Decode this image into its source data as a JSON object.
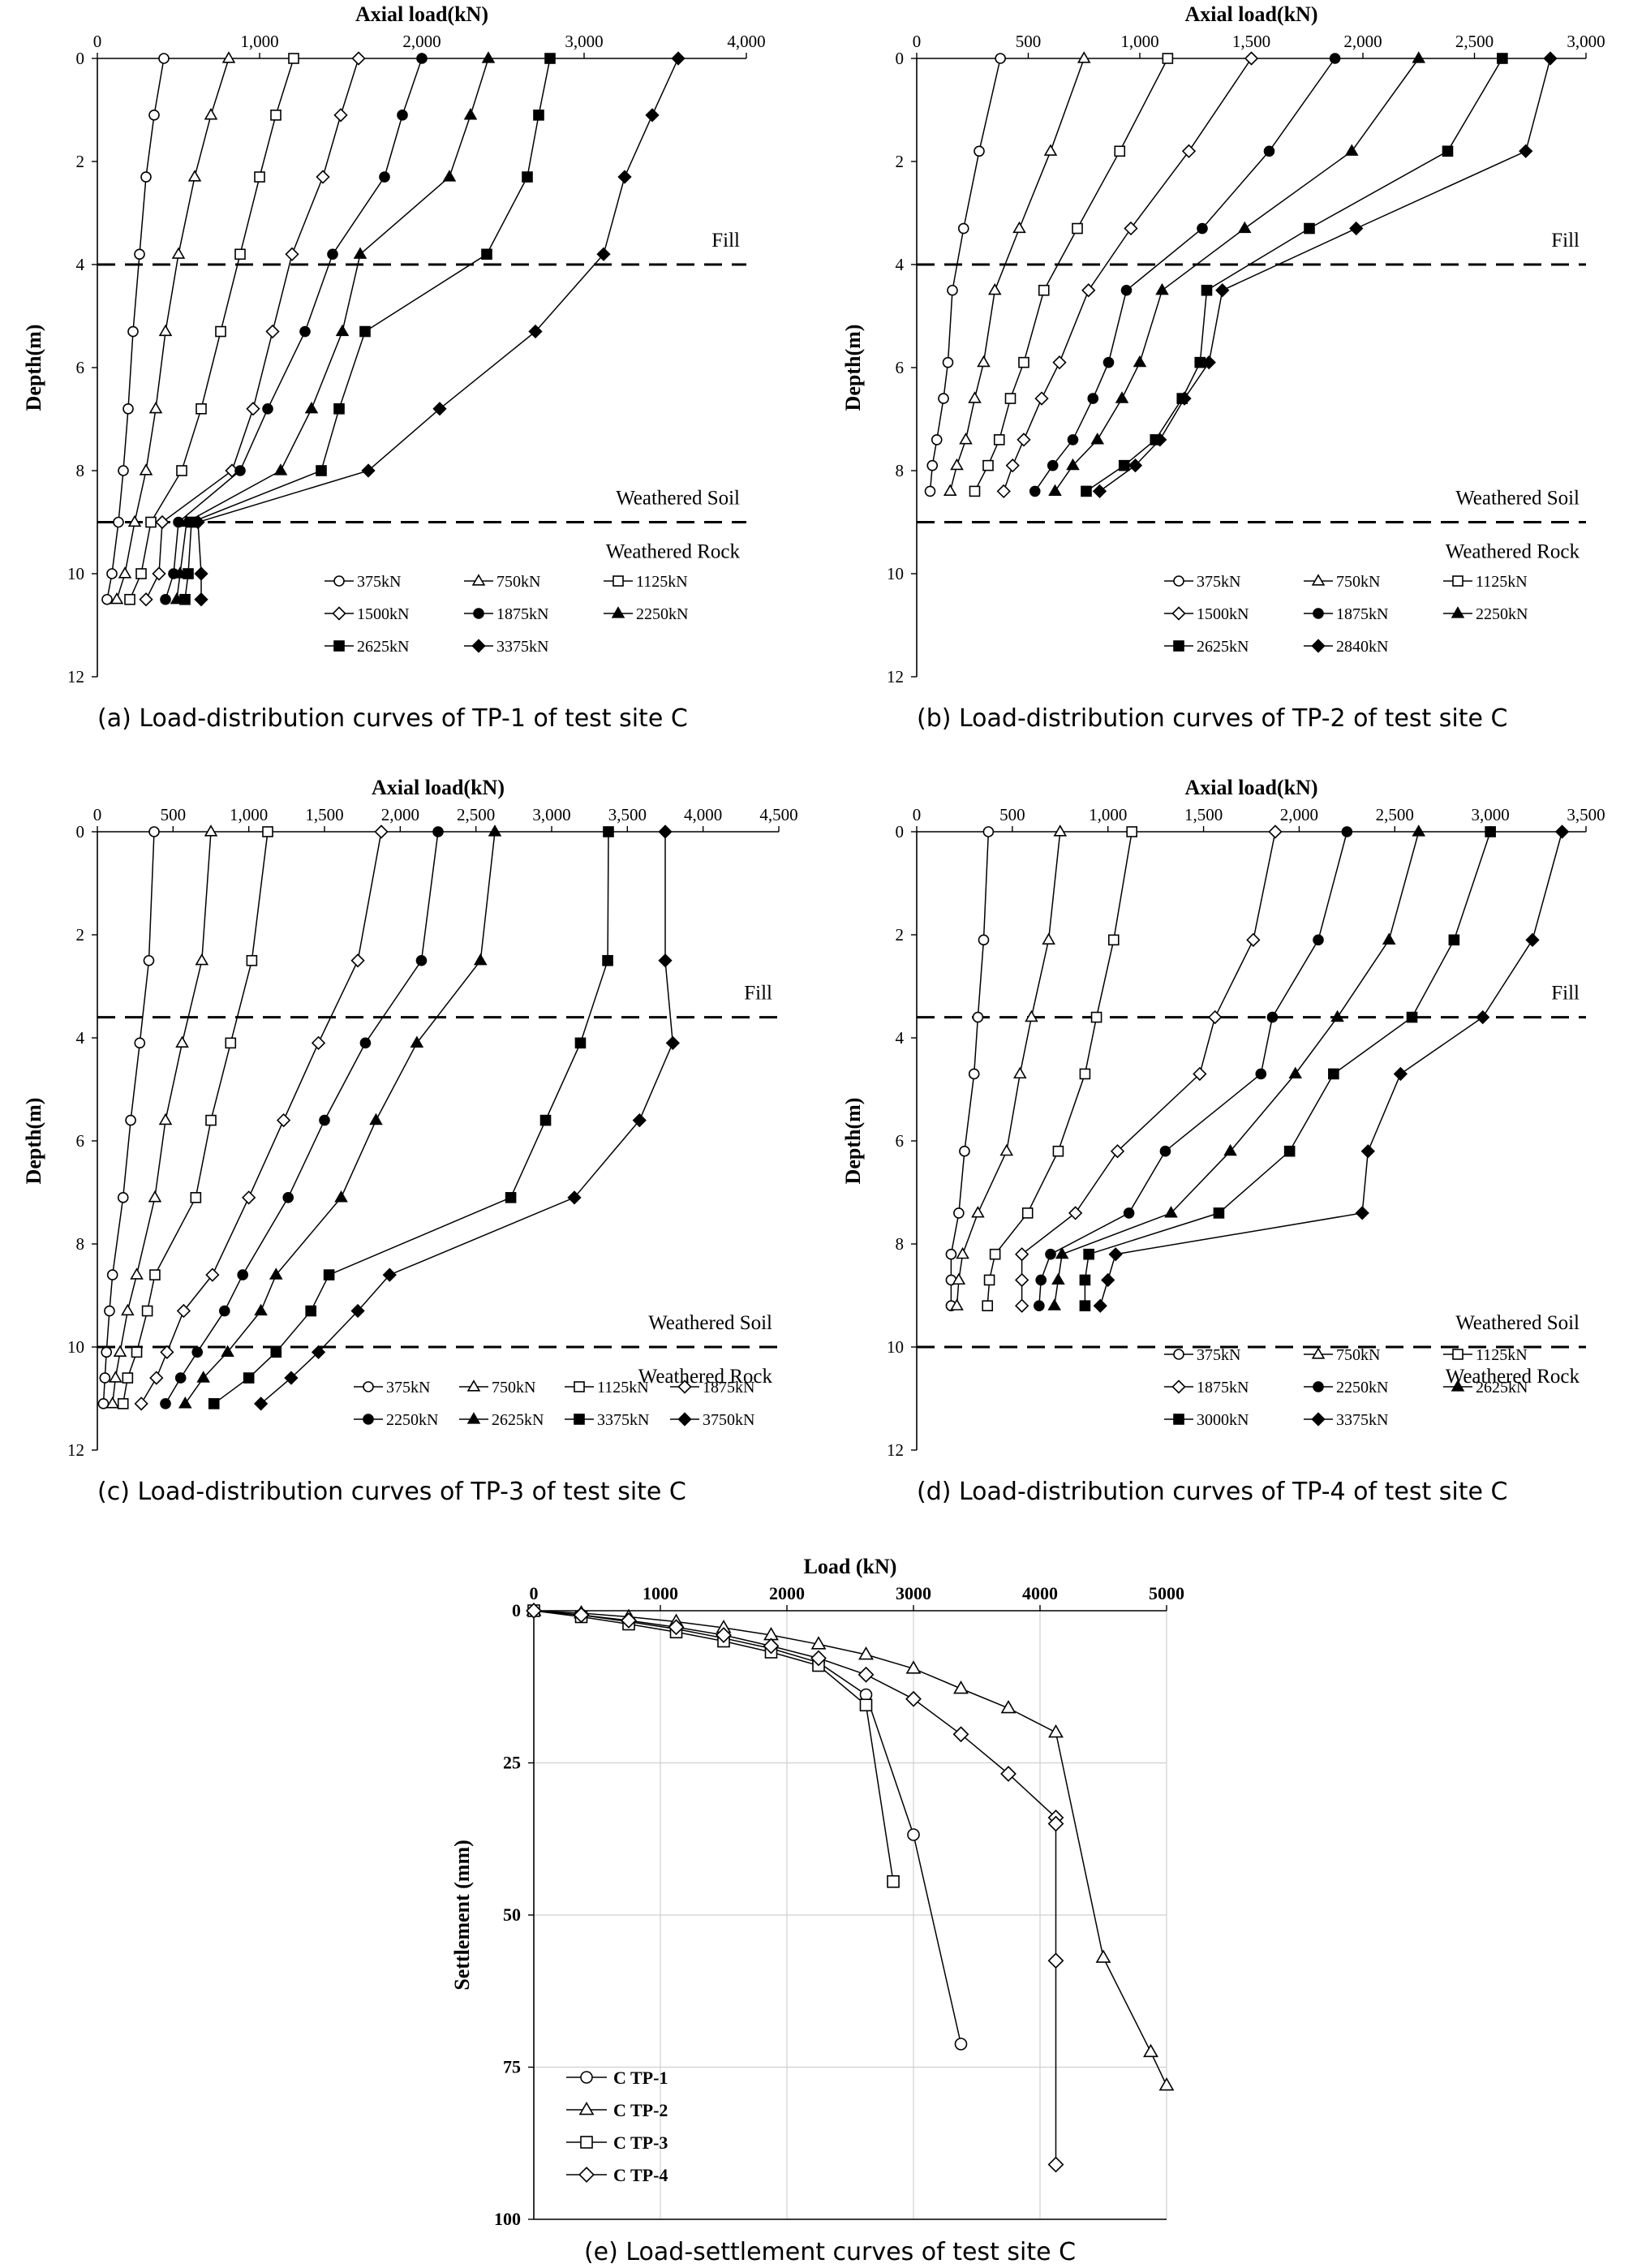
{
  "styles": {
    "line_color": "#000000",
    "gridline_color": "#d0d0d0",
    "background": "#ffffff"
  },
  "chart_data": [
    {
      "id": "a",
      "type": "line",
      "caption": "(a) Load-distribution curves of TP-1 of test site C",
      "xlabel": "Axial load(kN)",
      "ylabel": "Depth(m)",
      "xlim": [
        0,
        4000
      ],
      "ylim": [
        0,
        12
      ],
      "x_ticks": [
        0,
        1000,
        2000,
        3000,
        4000
      ],
      "x_tick_labels": [
        "0",
        "1,000",
        "2,000",
        "3,000",
        "4,000"
      ],
      "y_ticks": [
        0,
        2,
        4,
        6,
        8,
        10,
        12
      ],
      "y_tick_labels": [
        "0",
        "2",
        "4",
        "6",
        "8",
        "10",
        "12"
      ],
      "x_axis_position": "top",
      "y_inverted": true,
      "grid": false,
      "boundaries": [
        {
          "depth": 4.0,
          "label": "Fill"
        },
        {
          "depth": 9.0,
          "label": "Weathered Soil"
        }
      ],
      "bottom_label": "Weathered Rock",
      "legend_position": "bottom-right",
      "legend_cols": 3,
      "depth": [
        0,
        1.1,
        2.3,
        3.8,
        5.3,
        6.8,
        8.0,
        9.0,
        10.0,
        10.5
      ],
      "series": [
        {
          "name": "375kN",
          "marker": "circle-open",
          "x": [
            410,
            350,
            300,
            260,
            220,
            190,
            160,
            130,
            90,
            60
          ]
        },
        {
          "name": "750kN",
          "marker": "triangle-open",
          "x": [
            810,
            700,
            600,
            500,
            420,
            360,
            300,
            230,
            170,
            120
          ]
        },
        {
          "name": "1125kN",
          "marker": "square-open",
          "x": [
            1210,
            1100,
            1000,
            880,
            760,
            640,
            520,
            330,
            270,
            200
          ]
        },
        {
          "name": "1500kN",
          "marker": "diamond-open",
          "x": [
            1610,
            1500,
            1390,
            1200,
            1080,
            960,
            830,
            400,
            380,
            300
          ]
        },
        {
          "name": "1875kN",
          "marker": "circle-filled",
          "x": [
            2000,
            1880,
            1770,
            1450,
            1280,
            1050,
            880,
            500,
            470,
            420
          ]
        },
        {
          "name": "2250kN",
          "marker": "triangle-filled",
          "x": [
            2410,
            2300,
            2170,
            1620,
            1510,
            1320,
            1130,
            550,
            510,
            490
          ]
        },
        {
          "name": "2625kN",
          "marker": "square-filled",
          "x": [
            2790,
            2720,
            2650,
            2400,
            1650,
            1490,
            1380,
            580,
            560,
            540
          ]
        },
        {
          "name": "3375kN",
          "marker": "diamond-filled",
          "x": [
            3580,
            3420,
            3250,
            3120,
            2700,
            2110,
            1670,
            620,
            640,
            640
          ]
        }
      ]
    },
    {
      "id": "b",
      "type": "line",
      "caption": "(b) Load-distribution curves of TP-2 of test site C",
      "xlabel": "Axial load(kN)",
      "ylabel": "Depth(m)",
      "xlim": [
        0,
        3000
      ],
      "ylim": [
        0,
        12
      ],
      "x_ticks": [
        0,
        500,
        1000,
        1500,
        2000,
        2500,
        3000
      ],
      "x_tick_labels": [
        "0",
        "500",
        "1,000",
        "1,500",
        "2,000",
        "2,500",
        "3,000"
      ],
      "y_ticks": [
        0,
        2,
        4,
        6,
        8,
        10,
        12
      ],
      "y_tick_labels": [
        "0",
        "2",
        "4",
        "6",
        "8",
        "10",
        "12"
      ],
      "x_axis_position": "top",
      "y_inverted": true,
      "grid": false,
      "boundaries": [
        {
          "depth": 4.0,
          "label": "Fill"
        },
        {
          "depth": 9.0,
          "label": "Weathered Soil"
        }
      ],
      "bottom_label": "Weathered Rock",
      "legend_position": "bottom-right",
      "legend_cols": 3,
      "depth": [
        0,
        1.8,
        3.3,
        4.5,
        5.9,
        6.6,
        7.4,
        7.9,
        8.4
      ],
      "series": [
        {
          "name": "375kN",
          "marker": "circle-open",
          "x": [
            375,
            280,
            210,
            160,
            140,
            120,
            90,
            70,
            60
          ]
        },
        {
          "name": "750kN",
          "marker": "triangle-open",
          "x": [
            750,
            600,
            460,
            350,
            300,
            260,
            220,
            180,
            150
          ]
        },
        {
          "name": "1125kN",
          "marker": "square-open",
          "x": [
            1125,
            910,
            720,
            570,
            480,
            420,
            370,
            320,
            260
          ]
        },
        {
          "name": "1500kN",
          "marker": "diamond-open",
          "x": [
            1500,
            1220,
            960,
            770,
            640,
            560,
            480,
            430,
            390
          ]
        },
        {
          "name": "1875kN",
          "marker": "circle-filled",
          "x": [
            1875,
            1580,
            1280,
            940,
            860,
            790,
            700,
            610,
            530
          ]
        },
        {
          "name": "2250kN",
          "marker": "triangle-filled",
          "x": [
            2250,
            1950,
            1470,
            1100,
            1000,
            920,
            810,
            700,
            620
          ]
        },
        {
          "name": "2625kN",
          "marker": "square-filled",
          "x": [
            2625,
            2380,
            1760,
            1300,
            1270,
            1190,
            1070,
            930,
            760
          ]
        },
        {
          "name": "2840kN",
          "marker": "diamond-filled",
          "x": [
            2840,
            2730,
            1970,
            1370,
            1310,
            1200,
            1090,
            980,
            820
          ]
        }
      ]
    },
    {
      "id": "c",
      "type": "line",
      "caption": "(c) Load-distribution curves of TP-3 of test site C",
      "xlabel": "Axial load(kN)",
      "ylabel": "Depth(m)",
      "xlim": [
        0,
        4500
      ],
      "ylim": [
        0,
        12
      ],
      "x_ticks": [
        0,
        500,
        1000,
        1500,
        2000,
        2500,
        3000,
        3500,
        4000,
        4500
      ],
      "x_tick_labels": [
        "0",
        "500",
        "1,000",
        "1,500",
        "2,000",
        "2,500",
        "3,000",
        "3,500",
        "4,000",
        "4,500"
      ],
      "y_ticks": [
        0,
        2,
        4,
        6,
        8,
        10,
        12
      ],
      "y_tick_labels": [
        "0",
        "2",
        "4",
        "6",
        "8",
        "10",
        "12"
      ],
      "x_axis_position": "top",
      "y_inverted": true,
      "grid": false,
      "boundaries": [
        {
          "depth": 3.6,
          "label": "Fill"
        },
        {
          "depth": 10.0,
          "label": "Weathered Soil"
        }
      ],
      "bottom_label": "Weathered Rock",
      "legend_position": "bottom-right",
      "legend_cols": 4,
      "depth": [
        0,
        2.5,
        4.1,
        5.6,
        7.1,
        8.6,
        9.3,
        10.1,
        10.6,
        11.1
      ],
      "series": [
        {
          "name": "375kN",
          "marker": "circle-open",
          "x": [
            375,
            340,
            280,
            220,
            170,
            100,
            80,
            60,
            50,
            40
          ]
        },
        {
          "name": "750kN",
          "marker": "triangle-open",
          "x": [
            750,
            690,
            560,
            450,
            380,
            260,
            200,
            150,
            120,
            100
          ]
        },
        {
          "name": "1125kN",
          "marker": "square-open",
          "x": [
            1125,
            1020,
            880,
            750,
            650,
            380,
            330,
            260,
            200,
            170
          ]
        },
        {
          "name": "1875kN",
          "marker": "diamond-open",
          "x": [
            1875,
            1720,
            1460,
            1230,
            1000,
            760,
            570,
            460,
            390,
            290
          ]
        },
        {
          "name": "2250kN",
          "marker": "circle-filled",
          "x": [
            2250,
            2140,
            1770,
            1500,
            1260,
            960,
            840,
            660,
            550,
            450
          ]
        },
        {
          "name": "2625kN",
          "marker": "triangle-filled",
          "x": [
            2625,
            2530,
            2110,
            1840,
            1610,
            1180,
            1080,
            860,
            700,
            580
          ]
        },
        {
          "name": "3375kN",
          "marker": "square-filled",
          "x": [
            3375,
            3370,
            3190,
            2960,
            2730,
            1530,
            1410,
            1180,
            1000,
            770
          ]
        },
        {
          "name": "3750kN",
          "marker": "diamond-filled",
          "x": [
            3750,
            3750,
            3800,
            3580,
            3150,
            1930,
            1720,
            1460,
            1280,
            1080
          ]
        }
      ]
    },
    {
      "id": "d",
      "type": "line",
      "caption": "(d) Load-distribution curves of TP-4 of test site C",
      "xlabel": "Axial load(kN)",
      "ylabel": "Depth(m)",
      "xlim": [
        0,
        3500
      ],
      "ylim": [
        0,
        12
      ],
      "x_ticks": [
        0,
        500,
        1000,
        1500,
        2000,
        2500,
        3000,
        3500
      ],
      "x_tick_labels": [
        "0",
        "500",
        "1,000",
        "1,500",
        "2,000",
        "2,500",
        "3,000",
        "3,500"
      ],
      "y_ticks": [
        0,
        2,
        4,
        6,
        8,
        10,
        12
      ],
      "y_tick_labels": [
        "0",
        "2",
        "4",
        "6",
        "8",
        "10",
        "12"
      ],
      "x_axis_position": "top",
      "y_inverted": true,
      "grid": false,
      "boundaries": [
        {
          "depth": 3.6,
          "label": "Fill"
        },
        {
          "depth": 10.0,
          "label": "Weathered Soil"
        }
      ],
      "bottom_label": "Weathered Rock",
      "legend_position": "bottom-right",
      "legend_cols": 3,
      "depth": [
        0,
        2.1,
        3.6,
        4.7,
        6.2,
        7.4,
        8.2,
        8.7,
        9.2
      ],
      "series": [
        {
          "name": "375kN",
          "marker": "circle-open",
          "x": [
            375,
            350,
            320,
            300,
            250,
            220,
            180,
            180,
            180
          ]
        },
        {
          "name": "750kN",
          "marker": "triangle-open",
          "x": [
            750,
            690,
            600,
            540,
            470,
            320,
            240,
            220,
            210
          ]
        },
        {
          "name": "1125kN",
          "marker": "square-open",
          "x": [
            1125,
            1030,
            940,
            880,
            740,
            580,
            410,
            380,
            370
          ]
        },
        {
          "name": "1875kN",
          "marker": "diamond-open",
          "x": [
            1875,
            1760,
            1560,
            1480,
            1050,
            830,
            550,
            550,
            550
          ]
        },
        {
          "name": "2250kN",
          "marker": "circle-filled",
          "x": [
            2250,
            2100,
            1860,
            1800,
            1300,
            1110,
            700,
            650,
            640
          ]
        },
        {
          "name": "2625kN",
          "marker": "triangle-filled",
          "x": [
            2625,
            2470,
            2200,
            1980,
            1640,
            1330,
            760,
            740,
            720
          ]
        },
        {
          "name": "3000kN",
          "marker": "square-filled",
          "x": [
            3000,
            2810,
            2590,
            2180,
            1950,
            1580,
            900,
            880,
            880
          ]
        },
        {
          "name": "3375kN",
          "marker": "diamond-filled",
          "x": [
            3375,
            3220,
            2960,
            2530,
            2360,
            2330,
            1040,
            1000,
            960
          ]
        }
      ]
    },
    {
      "id": "e",
      "type": "line",
      "caption": "(e) Load-settlement curves of test site C",
      "xlabel": "Load (kN)",
      "ylabel": "Settlement (mm)",
      "xlim": [
        0,
        5000
      ],
      "ylim": [
        0,
        100
      ],
      "x_ticks": [
        0,
        1000,
        2000,
        3000,
        4000,
        5000
      ],
      "x_tick_labels": [
        "0",
        "1000",
        "2000",
        "3000",
        "4000",
        "5000"
      ],
      "y_ticks": [
        0,
        25,
        50,
        75,
        100
      ],
      "y_tick_labels": [
        "0",
        "25",
        "50",
        "75",
        "100"
      ],
      "x_axis_position": "top",
      "y_inverted": true,
      "grid": true,
      "legend_position": "bottom-left",
      "legend_cols": 1,
      "series": [
        {
          "name": "C TP-1",
          "marker": "circle-open",
          "x": [
            0,
            375,
            750,
            1125,
            1500,
            1875,
            2250,
            2625,
            3000,
            3375
          ],
          "y": [
            0,
            0.7,
            1.8,
            3.0,
            4.5,
            6.2,
            8.5,
            13.8,
            36.8,
            71.2
          ]
        },
        {
          "name": "C TP-2",
          "marker": "triangle-open",
          "x": [
            0,
            375,
            750,
            1125,
            1500,
            1875,
            2250,
            2625,
            3000,
            3375,
            3750,
            4125,
            4500,
            4875,
            5000
          ],
          "y": [
            0,
            0.4,
            1.0,
            1.8,
            2.8,
            4.0,
            5.5,
            7.2,
            9.5,
            12.8,
            16.0,
            20.0,
            57.0,
            72.5,
            78.0
          ]
        },
        {
          "name": "C TP-3",
          "marker": "square-open",
          "x": [
            0,
            375,
            750,
            1125,
            1500,
            1875,
            2250,
            2625,
            2840
          ],
          "y": [
            0,
            1.0,
            2.2,
            3.5,
            5.0,
            6.8,
            9.0,
            15.5,
            44.5
          ]
        },
        {
          "name": "C TP-4",
          "marker": "diamond-open",
          "x": [
            0,
            375,
            750,
            1125,
            1500,
            1875,
            2250,
            2625,
            3000,
            3375,
            3750,
            4125,
            4125,
            4125,
            4125
          ],
          "y": [
            0,
            0.7,
            1.6,
            2.7,
            4.0,
            5.8,
            7.8,
            10.5,
            14.5,
            20.3,
            26.8,
            34.0,
            35.0,
            57.5,
            91.0
          ]
        }
      ]
    }
  ]
}
